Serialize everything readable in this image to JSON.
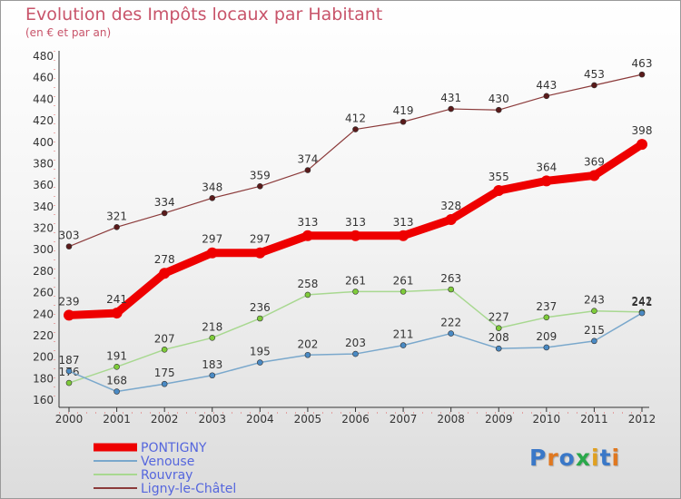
{
  "title": "Evolution des Impôts locaux par Habitant",
  "subtitle": "(en € et par an)",
  "logo": {
    "text": "Proxiti",
    "letter_colors": [
      "#3a78c8",
      "#e07820",
      "#3a78c8",
      "#2aa84a",
      "#e0a020",
      "#3a78c8",
      "#e07820"
    ]
  },
  "colors": {
    "title": "#c8546a",
    "axis": "#333333",
    "grid_dash": "#e06060"
  },
  "chart_data": {
    "type": "line",
    "title": "Evolution des Impôts locaux par Habitant",
    "subtitle": "(en € et par an)",
    "xlabel": "",
    "ylabel": "",
    "x": [
      "2000",
      "2001",
      "2002",
      "2003",
      "2004",
      "2005",
      "2006",
      "2007",
      "2008",
      "2009",
      "2010",
      "2011",
      "2012"
    ],
    "ylim": [
      160,
      480
    ],
    "yticks": [
      160,
      180,
      200,
      220,
      240,
      260,
      280,
      300,
      320,
      340,
      360,
      380,
      400,
      420,
      440,
      460,
      480
    ],
    "grid": false,
    "legend_position": "bottom-left",
    "series": [
      {
        "name": "Ligny-le-Châtel",
        "color": "#8b3a3a",
        "marker": "#5a1a1a",
        "width": 1.2,
        "values": [
          303,
          321,
          334,
          348,
          359,
          374,
          412,
          419,
          431,
          430,
          443,
          453,
          463
        ]
      },
      {
        "name": "Rouvray",
        "color": "#a8d890",
        "marker": "#7ecb3a",
        "width": 1.5,
        "values": [
          176,
          191,
          207,
          218,
          236,
          258,
          261,
          261,
          263,
          227,
          237,
          243,
          242
        ]
      },
      {
        "name": "Venouse",
        "color": "#7aa8cc",
        "marker": "#4a8ac4",
        "width": 1.5,
        "values": [
          187,
          168,
          175,
          183,
          195,
          202,
          203,
          211,
          222,
          208,
          209,
          215,
          241
        ]
      },
      {
        "name": "PONTIGNY",
        "color": "#ee0000",
        "marker": "#ee0000",
        "width": 9,
        "values": [
          239,
          241,
          278,
          297,
          297,
          313,
          313,
          313,
          328,
          355,
          364,
          369,
          398
        ]
      }
    ],
    "legend": [
      {
        "name": "PONTIGNY",
        "text_color": "#5566dd"
      },
      {
        "name": "Venouse",
        "text_color": "#5566dd"
      },
      {
        "name": "Rouvray",
        "text_color": "#5566dd"
      },
      {
        "name": "Ligny-le-Châtel",
        "text_color": "#5566dd"
      }
    ]
  }
}
